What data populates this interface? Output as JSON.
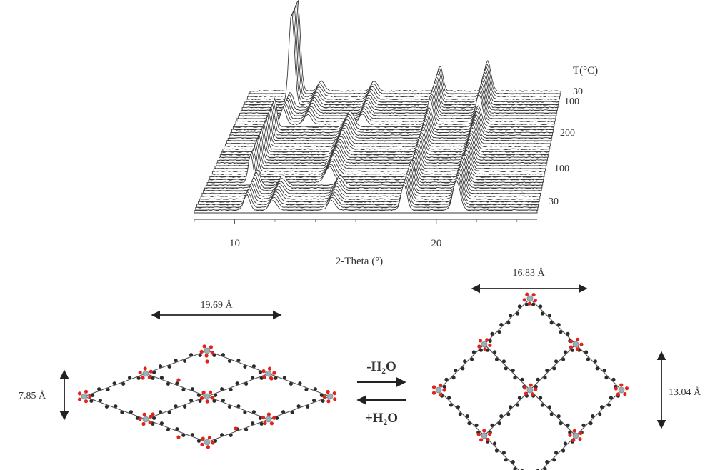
{
  "xrd_plot": {
    "x_axis_label": "2-Theta (°)",
    "x_ticks": [
      {
        "value": 10,
        "label": "10"
      },
      {
        "value": 20,
        "label": "20"
      }
    ],
    "x_range": [
      8,
      25
    ],
    "temperature_axis_label": "T(°C)",
    "temperature_ticks": [
      "30",
      "100",
      "200",
      "100",
      "30"
    ],
    "peaks_hydrated_2theta": [
      10.6,
      11.9,
      14.8,
      18.4,
      21.0
    ],
    "peaks_dehydrated_2theta": [
      10.2,
      14.2,
      18.4,
      21.0
    ]
  },
  "left_structure": {
    "width_label": "19.69 Å",
    "height_label": "7.85 Å"
  },
  "right_structure": {
    "width_label": "16.83 Å",
    "height_label": "13.04 Å"
  },
  "reaction": {
    "forward_label": "-H₂O",
    "reverse_label": "+H₂O"
  },
  "colors": {
    "oxygen": "#e2231a",
    "metal": "#9ab0b8",
    "carbon": "#2b2b2b",
    "trace": "#3a3a3a",
    "arrow": "#222222"
  }
}
